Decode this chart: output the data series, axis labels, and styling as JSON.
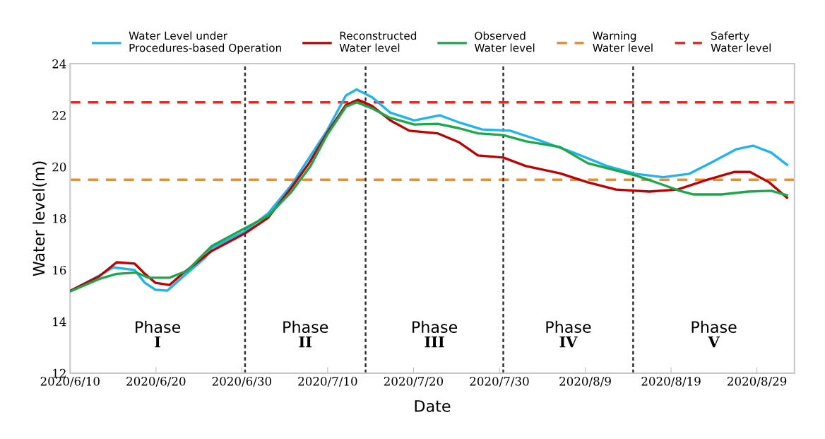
{
  "chart_data": {
    "type": "line",
    "xlabel": "Date",
    "ylabel": "Water level(m)",
    "xlim": [
      "2020-06-10",
      "2020-09-02T09:00"
    ],
    "ylim": [
      12,
      24
    ],
    "yticks": [
      12,
      14,
      16,
      18,
      20,
      22,
      24
    ],
    "xticks": [
      {
        "value": "2020-06-10",
        "label": "2020/6/10"
      },
      {
        "value": "2020-06-20",
        "label": "2020/6/20"
      },
      {
        "value": "2020-06-30",
        "label": "2020/6/30"
      },
      {
        "value": "2020-07-10",
        "label": "2020/7/10"
      },
      {
        "value": "2020-07-20",
        "label": "2020/7/20"
      },
      {
        "value": "2020-07-30",
        "label": "2020/7/30"
      },
      {
        "value": "2020-08-09",
        "label": "2020/8/9"
      },
      {
        "value": "2020-08-19",
        "label": "2020/8/19"
      },
      {
        "value": "2020-08-29",
        "label": "2020/8/29"
      }
    ],
    "grid": false,
    "legend": "top",
    "marker": "none",
    "line_style": "solid",
    "series": [
      {
        "name": "Water Level under\nProcedures-based Operation",
        "color": "#1eb4ec",
        "x": [
          "2020-06-10T02:00",
          "2020-06-13T09:00",
          "2020-06-15T00:00",
          "2020-06-17T12:00",
          "2020-06-18T17:00",
          "2020-06-19T23:00",
          "2020-06-21T08:00",
          "2020-06-22T20:00",
          "2020-06-25T17:00",
          "2020-06-26T12:00",
          "2020-06-30T09:00",
          "2020-07-03T02:00",
          "2020-07-05T19:00",
          "2020-07-07T18:00",
          "2020-07-09T22:00",
          "2020-07-12T03:00",
          "2020-07-13T09:00",
          "2020-07-15T04:00",
          "2020-07-17T07:00",
          "2020-07-20T02:00",
          "2020-07-23T01:00",
          "2020-07-25T12:00",
          "2020-07-28T00:00",
          "2020-07-31T06:00",
          "2020-08-03T13:00",
          "2020-08-07T10:00",
          "2020-08-11T13:00",
          "2020-08-14T20:00",
          "2020-08-18T02:00",
          "2020-08-21T03:00",
          "2020-08-23T21:00",
          "2020-08-26T14:00",
          "2020-08-28T13:00",
          "2020-08-30T16:00",
          "2020-09-01T12:00"
        ],
        "values": [
          15.2,
          15.78,
          16.1,
          16.0,
          15.5,
          15.23,
          15.2,
          15.65,
          16.47,
          16.85,
          17.5,
          18.2,
          19.3,
          20.3,
          21.4,
          22.77,
          23.0,
          22.7,
          22.1,
          21.8,
          22.0,
          21.7,
          21.45,
          21.4,
          21.04,
          20.58,
          20.03,
          19.73,
          19.6,
          19.73,
          20.2,
          20.68,
          20.82,
          20.55,
          20.08
        ]
      },
      {
        "name": "Reconstructed\nWater level",
        "color": "#c00000",
        "x": [
          "2020-06-10T02:00",
          "2020-06-13T09:00",
          "2020-06-15T10:00",
          "2020-06-17T12:00",
          "2020-06-18T17:00",
          "2020-06-19T23:00",
          "2020-06-21T14:00",
          "2020-06-23T06:00",
          "2020-06-26T12:00",
          "2020-06-30T09:00",
          "2020-07-03T02:00",
          "2020-07-05T19:00",
          "2020-07-07T18:00",
          "2020-07-09T22:00",
          "2020-07-12T03:00",
          "2020-07-13T13:00",
          "2020-07-15T04:00",
          "2020-07-17T07:00",
          "2020-07-19T12:00",
          "2020-07-22T19:00",
          "2020-07-25T06:00",
          "2020-07-27T12:00",
          "2020-07-30T11:00",
          "2020-08-02T02:00",
          "2020-08-06T01:00",
          "2020-08-09T07:00",
          "2020-08-12T14:00",
          "2020-08-16T11:00",
          "2020-08-19T18:00",
          "2020-08-23T01:00",
          "2020-08-26T08:00",
          "2020-08-28T05:00",
          "2020-08-30T10:00",
          "2020-09-01T12:00"
        ],
        "values": [
          15.2,
          15.75,
          16.3,
          16.25,
          15.85,
          15.5,
          15.42,
          15.9,
          16.74,
          17.42,
          18.03,
          19.2,
          20.1,
          21.3,
          22.4,
          22.6,
          22.36,
          21.8,
          21.4,
          21.3,
          20.96,
          20.44,
          20.36,
          20.03,
          19.75,
          19.4,
          19.12,
          19.04,
          19.12,
          19.48,
          19.8,
          19.8,
          19.4,
          18.8
        ]
      },
      {
        "name": "Observed\nWater level",
        "color": "#1aa84a",
        "x": [
          "2020-06-10T02:00",
          "2020-06-13T09:00",
          "2020-06-15T10:00",
          "2020-06-17T17:00",
          "2020-06-19T03:00",
          "2020-06-21T14:00",
          "2020-06-23T15:00",
          "2020-06-26T12:00",
          "2020-06-30T09:00",
          "2020-07-03T02:00",
          "2020-07-05T19:00",
          "2020-07-08T00:00",
          "2020-07-09T22:00",
          "2020-07-12T03:00",
          "2020-07-13T09:00",
          "2020-07-15T04:00",
          "2020-07-17T07:00",
          "2020-07-20T02:00",
          "2020-07-22T19:00",
          "2020-07-25T06:00",
          "2020-07-27T12:00",
          "2020-07-30T11:00",
          "2020-08-02T02:00",
          "2020-08-06T01:00",
          "2020-08-09T07:00",
          "2020-08-12T14:00",
          "2020-08-14T20:00",
          "2020-08-18T02:00",
          "2020-08-20T00:00",
          "2020-08-21T15:00",
          "2020-08-24T22:00",
          "2020-08-27T23:00",
          "2020-08-30T16:00",
          "2020-09-01T12:00"
        ],
        "values": [
          15.18,
          15.65,
          15.85,
          15.9,
          15.7,
          15.7,
          15.97,
          16.93,
          17.62,
          18.1,
          19.04,
          20.03,
          21.23,
          22.33,
          22.5,
          22.27,
          21.9,
          21.64,
          21.67,
          21.5,
          21.3,
          21.23,
          20.99,
          20.77,
          20.14,
          19.86,
          19.67,
          19.3,
          19.07,
          18.93,
          18.93,
          19.04,
          19.07,
          18.9
        ]
      }
    ],
    "ref_lines": [
      {
        "axis": "y",
        "value": 19.5,
        "label": "Warning\nWater level",
        "color": "#f28a2e",
        "line_style": "dashed"
      },
      {
        "axis": "y",
        "value": 22.5,
        "label": "Saferty\nWater level",
        "color": "#ff1f1f",
        "line_style": "dashed"
      },
      {
        "axis": "x",
        "value": "2020-06-30T09:00",
        "color": "#333333",
        "line_style": "dotted"
      },
      {
        "axis": "x",
        "value": "2020-07-14T10:00",
        "color": "#333333",
        "line_style": "dotted"
      },
      {
        "axis": "x",
        "value": "2020-07-30T11:00",
        "color": "#333333",
        "line_style": "dotted"
      },
      {
        "axis": "x",
        "value": "2020-08-14T14:00",
        "color": "#333333",
        "line_style": "dotted"
      }
    ],
    "annotations": [
      "Phase\nI",
      "Phase\nII",
      "Phase\nIII",
      "Phase\nIV",
      "Phase\nV"
    ]
  }
}
